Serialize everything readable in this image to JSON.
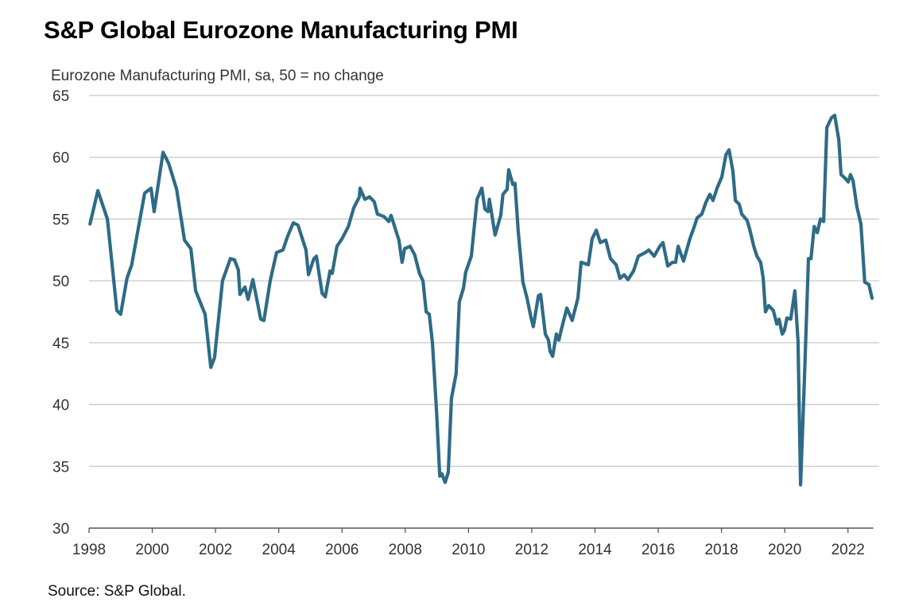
{
  "title": "S&P Global Eurozone Manufacturing PMI",
  "source": "Source: S&P Global.",
  "colors": {
    "line": "#2e6b86",
    "grid": "#c8c8c8",
    "axis": "#555555"
  },
  "chart_data": {
    "type": "line",
    "title": "S&P Global Eurozone Manufacturing PMI",
    "subtitle": "Eurozone Manufacturing PMI, sa, 50 = no change",
    "xlabel": "",
    "ylabel": "",
    "xlim": [
      1998,
      2022.8
    ],
    "ylim": [
      30,
      65
    ],
    "grid": true,
    "legend": "none",
    "x_ticks": [
      1998,
      2000,
      2002,
      2004,
      2006,
      2008,
      2010,
      2012,
      2014,
      2016,
      2018,
      2020,
      2022
    ],
    "x_tick_labels": [
      "1998",
      "2000",
      "2002",
      "2004",
      "2006",
      "2008",
      "2010",
      "2012",
      "2014",
      "2016",
      "2018",
      "2020",
      "2022"
    ],
    "y_ticks": [
      30,
      35,
      40,
      45,
      50,
      55,
      60,
      65
    ],
    "y_tick_labels": [
      "30",
      "35",
      "40",
      "45",
      "50",
      "55",
      "60",
      "65"
    ],
    "series": [
      {
        "name": "Eurozone Manufacturing PMI",
        "x": [
          1998.03,
          1998.28,
          1998.58,
          1998.88,
          1999.0,
          1999.2,
          1999.35,
          1999.76,
          1999.96,
          2000.06,
          2000.34,
          2000.52,
          2000.77,
          2001.02,
          2001.22,
          2001.37,
          2001.67,
          2001.85,
          2001.97,
          2002.22,
          2002.47,
          2002.6,
          2002.72,
          2002.77,
          2002.93,
          2003.03,
          2003.18,
          2003.43,
          2003.53,
          2003.73,
          2003.93,
          2004.13,
          2004.28,
          2004.46,
          2004.61,
          2004.86,
          2004.94,
          2005.11,
          2005.19,
          2005.37,
          2005.47,
          2005.62,
          2005.69,
          2005.84,
          2006.0,
          2006.2,
          2006.37,
          2006.55,
          2006.57,
          2006.72,
          2006.87,
          2007.02,
          2007.12,
          2007.33,
          2007.48,
          2007.55,
          2007.8,
          2007.9,
          2007.98,
          2008.15,
          2008.3,
          2008.45,
          2008.56,
          2008.66,
          2008.76,
          2008.86,
          2008.99,
          2009.09,
          2009.16,
          2009.26,
          2009.36,
          2009.46,
          2009.61,
          2009.71,
          2009.84,
          2009.91,
          2010.09,
          2010.27,
          2010.42,
          2010.52,
          2010.62,
          2010.66,
          2010.84,
          2011.02,
          2011.09,
          2011.22,
          2011.27,
          2011.4,
          2011.47,
          2011.57,
          2011.72,
          2011.85,
          2011.98,
          2012.05,
          2012.21,
          2012.28,
          2012.43,
          2012.53,
          2012.58,
          2012.66,
          2012.78,
          2012.86,
          2012.93,
          2013.11,
          2013.28,
          2013.46,
          2013.56,
          2013.79,
          2013.91,
          2014.04,
          2014.17,
          2014.34,
          2014.49,
          2014.67,
          2014.79,
          2014.92,
          2015.04,
          2015.22,
          2015.37,
          2015.6,
          2015.7,
          2015.87,
          2016.05,
          2016.15,
          2016.3,
          2016.45,
          2016.55,
          2016.63,
          2016.8,
          2017.0,
          2017.1,
          2017.23,
          2017.38,
          2017.5,
          2017.63,
          2017.73,
          2017.86,
          2018.01,
          2018.14,
          2018.24,
          2018.36,
          2018.44,
          2018.56,
          2018.64,
          2018.81,
          2018.89,
          2019.02,
          2019.12,
          2019.24,
          2019.32,
          2019.39,
          2019.49,
          2019.64,
          2019.75,
          2019.82,
          2019.92,
          2019.99,
          2020.07,
          2020.19,
          2020.32,
          2020.42,
          2020.5,
          2020.62,
          2020.75,
          2020.83,
          2020.93,
          2021.03,
          2021.13,
          2021.23,
          2021.33,
          2021.48,
          2021.58,
          2021.71,
          2021.78,
          2021.91,
          2022.01,
          2022.08,
          2022.16,
          2022.28,
          2022.41,
          2022.53,
          2022.66,
          2022.76
        ],
        "values": [
          54.6,
          57.3,
          55.0,
          47.6,
          47.3,
          50.2,
          51.3,
          57.1,
          57.5,
          55.6,
          60.4,
          59.5,
          57.4,
          53.3,
          52.6,
          49.2,
          47.3,
          43.0,
          43.8,
          50.0,
          51.8,
          51.7,
          50.9,
          48.9,
          49.5,
          48.5,
          50.1,
          46.9,
          46.8,
          50.0,
          52.3,
          52.5,
          53.6,
          54.7,
          54.5,
          52.5,
          50.5,
          51.8,
          52.0,
          49.0,
          48.7,
          50.8,
          50.6,
          52.8,
          53.4,
          54.4,
          55.9,
          56.8,
          57.5,
          56.6,
          56.8,
          56.4,
          55.4,
          55.2,
          54.8,
          55.3,
          53.3,
          51.5,
          52.6,
          52.8,
          52.1,
          50.6,
          50.0,
          47.5,
          47.3,
          45.0,
          39.4,
          34.2,
          34.4,
          33.7,
          34.5,
          40.5,
          42.5,
          48.3,
          49.4,
          50.7,
          52.0,
          56.6,
          57.5,
          55.8,
          55.6,
          56.6,
          53.7,
          55.3,
          57.0,
          57.4,
          59.0,
          57.8,
          57.9,
          54.1,
          49.9,
          48.6,
          47.0,
          46.3,
          48.8,
          48.9,
          45.7,
          45.2,
          44.3,
          43.9,
          45.7,
          45.2,
          46.0,
          47.8,
          46.8,
          48.6,
          51.5,
          51.3,
          53.4,
          54.1,
          53.1,
          53.3,
          51.8,
          51.3,
          50.2,
          50.5,
          50.1,
          50.8,
          52.0,
          52.3,
          52.5,
          52.0,
          52.8,
          53.1,
          51.2,
          51.5,
          51.5,
          52.8,
          51.6,
          53.4,
          54.1,
          55.1,
          55.4,
          56.3,
          57.0,
          56.5,
          57.5,
          58.4,
          60.2,
          60.6,
          58.9,
          56.5,
          56.2,
          55.4,
          54.9,
          54.2,
          52.8,
          52.0,
          51.5,
          50.2,
          47.5,
          48.0,
          47.6,
          46.5,
          46.9,
          45.7,
          46.0,
          47.0,
          46.9,
          49.2,
          45.1,
          33.5,
          41.8,
          51.8,
          51.8,
          54.4,
          53.9,
          55.0,
          54.8,
          62.4,
          63.2,
          63.4,
          61.4,
          58.6,
          58.3,
          58.0,
          58.6,
          58.1,
          56.0,
          54.6,
          49.9,
          49.7,
          48.6
        ]
      }
    ]
  }
}
